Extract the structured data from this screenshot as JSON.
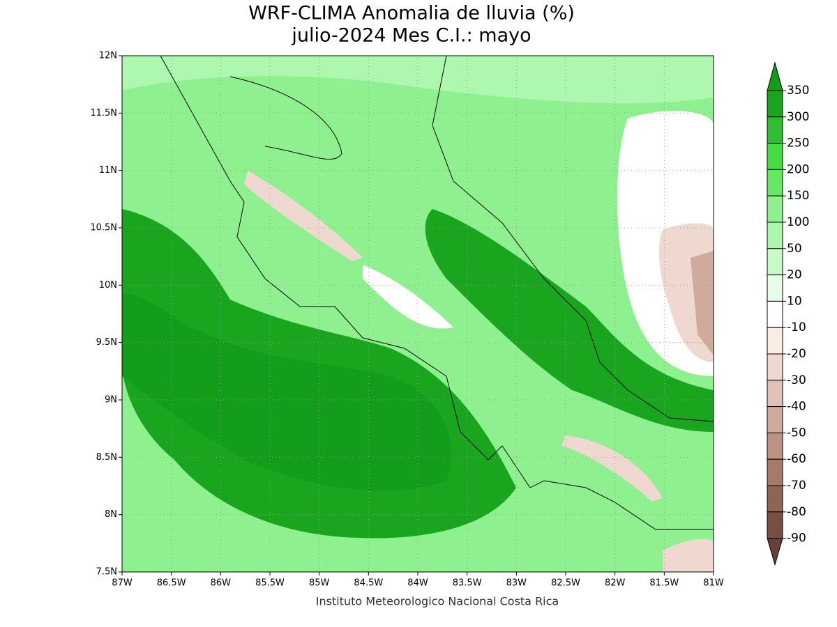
{
  "title": "WRF-CLIMA Anomalia de lluvia (%)",
  "subtitle": "julio-2024 Mes C.I.: mayo",
  "footer": "Instituto Meteorologico Nacional Costa Rica",
  "map": {
    "xlim": [
      -87,
      -81
    ],
    "ylim": [
      7.5,
      12
    ],
    "xticks": [
      {
        "value": -87,
        "label": "87W"
      },
      {
        "value": -86.5,
        "label": "86.5W"
      },
      {
        "value": -86,
        "label": "86W"
      },
      {
        "value": -85.5,
        "label": "85.5W"
      },
      {
        "value": -85,
        "label": "85W"
      },
      {
        "value": -84.5,
        "label": "84.5W"
      },
      {
        "value": -84,
        "label": "84W"
      },
      {
        "value": -83.5,
        "label": "83.5W"
      },
      {
        "value": -83,
        "label": "83W"
      },
      {
        "value": -82.5,
        "label": "82.5W"
      },
      {
        "value": -82,
        "label": "82W"
      },
      {
        "value": -81.5,
        "label": "81.5W"
      },
      {
        "value": -81,
        "label": "81W"
      }
    ],
    "yticks": [
      {
        "value": 7.5,
        "label": "7.5N"
      },
      {
        "value": 8,
        "label": "8N"
      },
      {
        "value": 8.5,
        "label": "8.5N"
      },
      {
        "value": 9,
        "label": "9N"
      },
      {
        "value": 9.5,
        "label": "9.5N"
      },
      {
        "value": 10,
        "label": "10N"
      },
      {
        "value": 10.5,
        "label": "10.5N"
      },
      {
        "value": 11,
        "label": "11N"
      },
      {
        "value": 11.5,
        "label": "11.5N"
      },
      {
        "value": 12,
        "label": "12N"
      }
    ],
    "grid": true
  },
  "colorbar": {
    "levels": [
      350,
      300,
      250,
      200,
      150,
      100,
      50,
      20,
      10,
      -10,
      -20,
      -30,
      -40,
      -50,
      -60,
      -70,
      -80,
      -90
    ],
    "colors": [
      "#129e1a",
      "#1aa51f",
      "#2fbf32",
      "#44dd44",
      "#66e866",
      "#8ef08e",
      "#aef7ae",
      "#c8fac8",
      "#e6fde6",
      "#ffffff",
      "#f9ece4",
      "#eed8cf",
      "#dfc1b6",
      "#d0aa9d",
      "#bb9283",
      "#a57a6b",
      "#8f6455",
      "#7a4f43",
      "#6a4036"
    ]
  }
}
